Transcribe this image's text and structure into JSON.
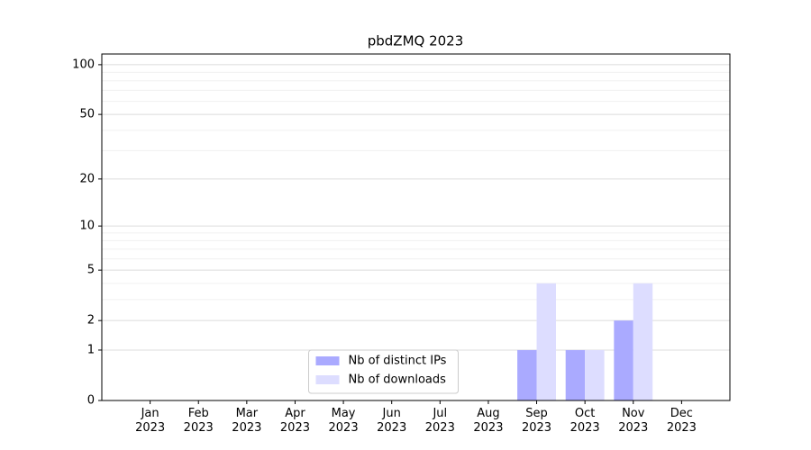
{
  "chart_data": {
    "type": "bar",
    "title": "pbdZMQ 2023",
    "categories": [
      "Jan\n2023",
      "Feb\n2023",
      "Mar\n2023",
      "Apr\n2023",
      "May\n2023",
      "Jun\n2023",
      "Jul\n2023",
      "Aug\n2023",
      "Sep\n2023",
      "Oct\n2023",
      "Nov\n2023",
      "Dec\n2023"
    ],
    "series": [
      {
        "name": "Nb of distinct IPs",
        "color": "#aaaaff",
        "values": [
          0,
          0,
          0,
          0,
          0,
          0,
          0,
          0,
          1,
          1,
          2,
          0
        ]
      },
      {
        "name": "Nb of downloads",
        "color": "#ddddff",
        "values": [
          0,
          0,
          0,
          0,
          0,
          0,
          0,
          0,
          4,
          1,
          4,
          0
        ]
      }
    ],
    "yscale": "log1p",
    "ylim": [
      0,
      116
    ],
    "yticks": [
      0,
      1,
      2,
      5,
      10,
      20,
      50,
      100
    ],
    "yminorticks": [
      3,
      4,
      6,
      7,
      8,
      9,
      30,
      40,
      60,
      70,
      80,
      90
    ],
    "grid": true,
    "legend": "lower center"
  }
}
